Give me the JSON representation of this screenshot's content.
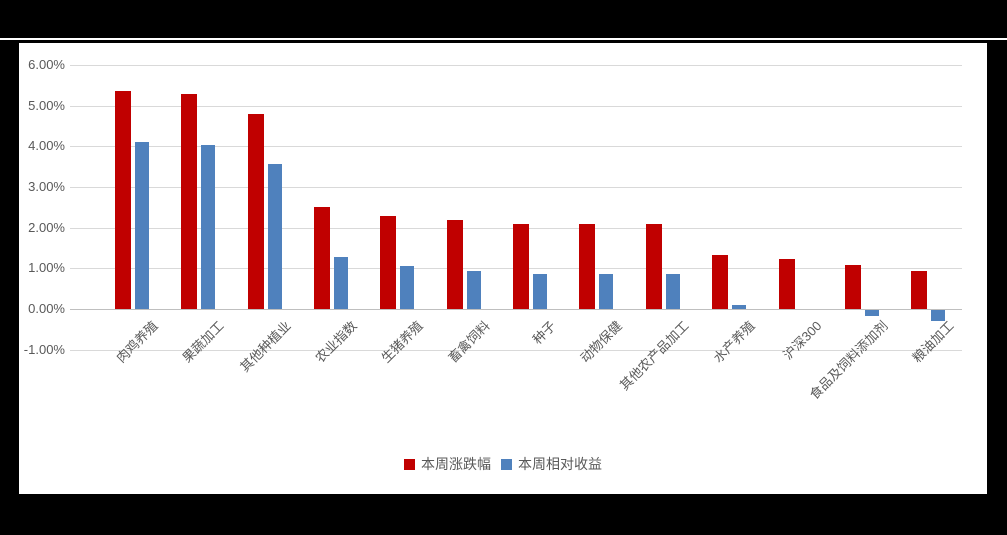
{
  "frame": {
    "background_color": "#000000",
    "sheet_background_color": "#ffffff"
  },
  "chart_data": {
    "type": "bar",
    "title": "",
    "xlabel": "",
    "ylabel": "",
    "grid": true,
    "legend_position": "bottom",
    "axis_text_color": "#595959",
    "gridline_color": "#d9d9d9",
    "ylim": [
      -1,
      6
    ],
    "yticks": [
      {
        "label": "6.00%",
        "value": 6
      },
      {
        "label": "5.00%",
        "value": 5
      },
      {
        "label": "4.00%",
        "value": 4
      },
      {
        "label": "3.00%",
        "value": 3
      },
      {
        "label": "2.00%",
        "value": 2
      },
      {
        "label": "1.00%",
        "value": 1
      },
      {
        "label": "0.00%",
        "value": 0
      },
      {
        "label": "-1.00%",
        "value": -1
      }
    ],
    "categories": [
      "肉鸡养殖",
      "果蔬加工",
      "其他种植业",
      "农业指数",
      "生猪养殖",
      "畜禽饲料",
      "种子",
      "动物保健",
      "其他农产品加工",
      "水产养殖",
      "沪深300",
      "食品及饲料添加剂",
      "粮油加工"
    ],
    "series": [
      {
        "name": "本周涨跌幅",
        "color": "#c00000",
        "values": [
          5.35,
          5.28,
          4.8,
          2.52,
          2.29,
          2.18,
          2.1,
          2.08,
          2.08,
          1.33,
          1.22,
          1.08,
          0.93
        ]
      },
      {
        "name": "本周相对收益",
        "color": "#4f81bd",
        "values": [
          4.1,
          4.04,
          3.57,
          1.27,
          1.05,
          0.94,
          0.87,
          0.85,
          0.85,
          0.1,
          0.0,
          -0.15,
          -0.28
        ]
      }
    ]
  }
}
